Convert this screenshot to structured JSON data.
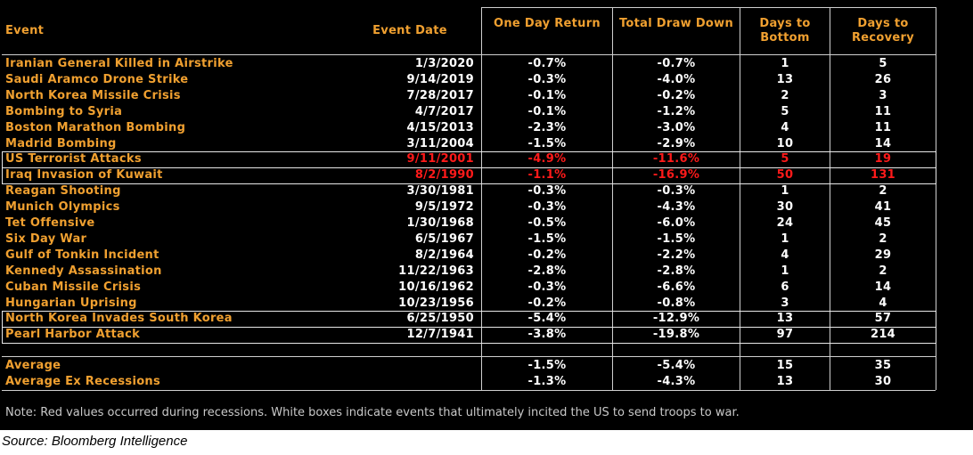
{
  "table": {
    "columns": [
      "Event",
      "Event Date",
      "One Day Return",
      "Total Draw Down",
      "Days to Bottom",
      "Days to Recovery"
    ],
    "rows": [
      {
        "cells": [
          "Iranian General Killed in Airstrike",
          "1/3/2020",
          "-0.7%",
          "-0.7%",
          "1",
          "5"
        ],
        "red": false,
        "boxed": false
      },
      {
        "cells": [
          "Saudi Aramco Drone Strike",
          "9/14/2019",
          "-0.3%",
          "-4.0%",
          "13",
          "26"
        ],
        "red": false,
        "boxed": false
      },
      {
        "cells": [
          "North Korea Missile Crisis",
          "7/28/2017",
          "-0.1%",
          "-0.2%",
          "2",
          "3"
        ],
        "red": false,
        "boxed": false
      },
      {
        "cells": [
          "Bombing to Syria",
          "4/7/2017",
          "-0.1%",
          "-1.2%",
          "5",
          "11"
        ],
        "red": false,
        "boxed": false
      },
      {
        "cells": [
          "Boston Marathon Bombing",
          "4/15/2013",
          "-2.3%",
          "-3.0%",
          "4",
          "11"
        ],
        "red": false,
        "boxed": false
      },
      {
        "cells": [
          "Madrid Bombing",
          "3/11/2004",
          "-1.5%",
          "-2.9%",
          "10",
          "14"
        ],
        "red": false,
        "boxed": false
      },
      {
        "cells": [
          "US Terrorist Attacks",
          "9/11/2001",
          "-4.9%",
          "-11.6%",
          "5",
          "19"
        ],
        "red": true,
        "boxed": true
      },
      {
        "cells": [
          "Iraq Invasion of Kuwait",
          "8/2/1990",
          "-1.1%",
          "-16.9%",
          "50",
          "131"
        ],
        "red": true,
        "boxed": true
      },
      {
        "cells": [
          "Reagan Shooting",
          "3/30/1981",
          "-0.3%",
          "-0.3%",
          "1",
          "2"
        ],
        "red": false,
        "boxed": false
      },
      {
        "cells": [
          "Munich Olympics",
          "9/5/1972",
          "-0.3%",
          "-4.3%",
          "30",
          "41"
        ],
        "red": false,
        "boxed": false
      },
      {
        "cells": [
          "Tet Offensive",
          "1/30/1968",
          "-0.5%",
          "-6.0%",
          "24",
          "45"
        ],
        "red": false,
        "boxed": false
      },
      {
        "cells": [
          "Six Day War",
          "6/5/1967",
          "-1.5%",
          "-1.5%",
          "1",
          "2"
        ],
        "red": false,
        "boxed": false
      },
      {
        "cells": [
          "Gulf of Tonkin Incident",
          "8/2/1964",
          "-0.2%",
          "-2.2%",
          "4",
          "29"
        ],
        "red": false,
        "boxed": false
      },
      {
        "cells": [
          "Kennedy Assassination",
          "11/22/1963",
          "-2.8%",
          "-2.8%",
          "1",
          "2"
        ],
        "red": false,
        "boxed": false
      },
      {
        "cells": [
          "Cuban Missile Crisis",
          "10/16/1962",
          "-0.3%",
          "-6.6%",
          "6",
          "14"
        ],
        "red": false,
        "boxed": false
      },
      {
        "cells": [
          "Hungarian Uprising",
          "10/23/1956",
          "-0.2%",
          "-0.8%",
          "3",
          "4"
        ],
        "red": false,
        "boxed": false
      },
      {
        "cells": [
          "North Korea Invades South Korea",
          "6/25/1950",
          "-5.4%",
          "-12.9%",
          "13",
          "57"
        ],
        "red": false,
        "boxed": true
      },
      {
        "cells": [
          "Pearl Harbor Attack",
          "12/7/1941",
          "-3.8%",
          "-19.8%",
          "97",
          "214"
        ],
        "red": false,
        "boxed": true
      }
    ],
    "summary": [
      [
        "Average",
        "-1.5%",
        "-5.4%",
        "15",
        "35"
      ],
      [
        "Average Ex Recessions",
        "-1.3%",
        "-4.3%",
        "13",
        "30"
      ]
    ],
    "note": "Note: Red values occurred during recessions. White boxes indicate events that ultimately incited the US to send troops to war.",
    "source": "Source: Bloomberg Intelligence"
  }
}
